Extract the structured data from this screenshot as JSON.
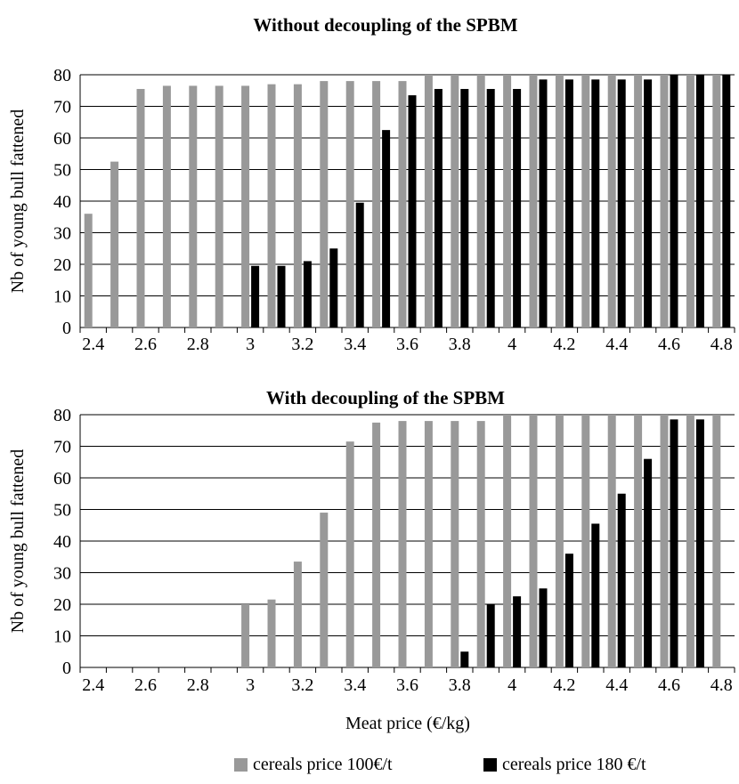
{
  "chart_data": [
    {
      "type": "bar",
      "title": "Without decoupling of the SPBM",
      "xlabel": "",
      "ylabel": "Nb of young bull fattened",
      "ylim": [
        0,
        80
      ],
      "yticks": [
        "0",
        "10",
        "20",
        "30",
        "40",
        "50",
        "60",
        "70",
        "80"
      ],
      "categories": [
        "2.4",
        "2.5",
        "2.6",
        "2.7",
        "2.8",
        "2.9",
        "3",
        "3.1",
        "3.2",
        "3.3",
        "3.4",
        "3.5",
        "3.6",
        "3.7",
        "3.8",
        "3.9",
        "4",
        "4.1",
        "4.2",
        "4.3",
        "4.4",
        "4.5",
        "4.6",
        "4.7",
        "4.8"
      ],
      "tick_labels": [
        "2.4",
        "",
        "2.6",
        "",
        "2.8",
        "",
        "3",
        "",
        "3.2",
        "",
        "3.4",
        "",
        "3.6",
        "",
        "3.8",
        "",
        "4",
        "",
        "4.2",
        "",
        "4.4",
        "",
        "4.6",
        "",
        "4.8"
      ],
      "grid": true,
      "series": [
        {
          "name": "cereals price 100€/t",
          "color": "#999999",
          "values": [
            36,
            52.5,
            75.5,
            76.5,
            76.5,
            76.5,
            76.5,
            77,
            77,
            78,
            78,
            78,
            78,
            80,
            80,
            80,
            80,
            80,
            80,
            80,
            80,
            80,
            80,
            80,
            80
          ]
        },
        {
          "name": "cereals price 180 €/t",
          "color": "#000000",
          "values": [
            0,
            0,
            0,
            0,
            0,
            0,
            19.5,
            19.5,
            21,
            25,
            39.5,
            62.5,
            73.5,
            75.5,
            75.5,
            75.5,
            75.5,
            78.5,
            78.5,
            78.5,
            78.5,
            78.5,
            80,
            80,
            80
          ]
        }
      ]
    },
    {
      "type": "bar",
      "title": "With decoupling of the SPBM",
      "xlabel": "Meat price (€/kg)",
      "ylabel": "Nb of young bull fattened",
      "ylim": [
        0,
        80
      ],
      "yticks": [
        "0",
        "10",
        "20",
        "30",
        "40",
        "50",
        "60",
        "70",
        "80"
      ],
      "categories": [
        "2.4",
        "2.5",
        "2.6",
        "2.7",
        "2.8",
        "2.9",
        "3",
        "3.1",
        "3.2",
        "3.3",
        "3.4",
        "3.5",
        "3.6",
        "3.7",
        "3.8",
        "3.9",
        "4",
        "4.1",
        "4.2",
        "4.3",
        "4.4",
        "4.5",
        "4.6",
        "4.7",
        "4.8"
      ],
      "tick_labels": [
        "2.4",
        "2.6",
        "2.8",
        "3",
        "3.2",
        "3.4",
        "3.6",
        "3.8",
        "4",
        "4.2",
        "4.4",
        "4.6",
        "4.8"
      ],
      "grid": true,
      "series": [
        {
          "name": "cereals price 100€/t",
          "color": "#999999",
          "values": [
            0,
            0,
            0,
            0,
            0,
            0,
            20,
            21.5,
            33.5,
            49,
            71.5,
            77.5,
            78,
            78,
            78,
            78,
            80,
            80,
            80,
            80,
            80,
            80,
            80,
            80,
            80
          ]
        },
        {
          "name": "cereals price 180 €/t",
          "color": "#000000",
          "values": [
            0,
            0,
            0,
            0,
            0,
            0,
            0,
            0,
            0,
            0,
            0,
            0,
            0,
            0,
            5,
            20,
            22.5,
            25,
            36,
            45.5,
            55,
            66,
            78.5,
            78.5,
            0
          ]
        }
      ]
    }
  ],
  "legend": {
    "items": [
      {
        "label": "cereals price 100€/t",
        "color": "#999999"
      },
      {
        "label": "cereals price 180 €/t",
        "color": "#000000"
      }
    ]
  }
}
